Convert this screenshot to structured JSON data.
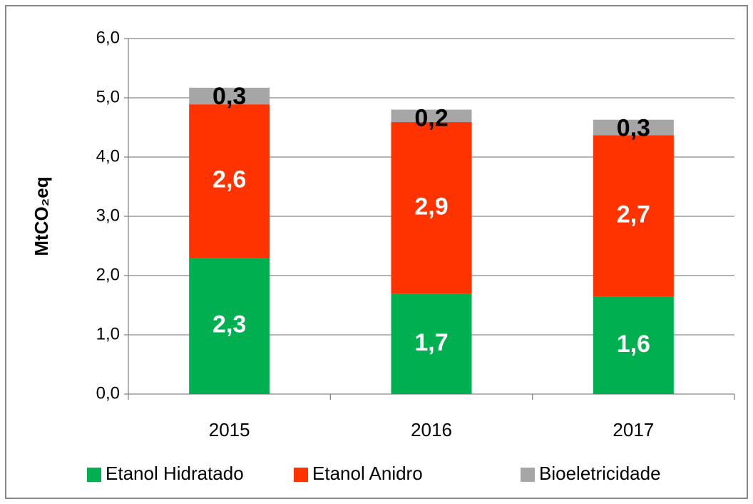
{
  "chart_data": {
    "type": "stacked_bar",
    "y_label": "MtCO₂eq",
    "categories": [
      "2015",
      "2016",
      "2017"
    ],
    "series": [
      {
        "name": "Etanol Hidratado",
        "color": "#00b050",
        "label_color": "#ffffff",
        "values": [
          2.3,
          1.69,
          1.64
        ],
        "value_labels": [
          "2,3",
          "1,7",
          "1,6"
        ]
      },
      {
        "name": "Etanol Anidro",
        "color": "#ff3300",
        "label_color": "#ffffff",
        "values": [
          2.59,
          2.9,
          2.73
        ],
        "value_labels": [
          "2,6",
          "2,9",
          "2,7"
        ]
      },
      {
        "name": "Bioeletricidade",
        "color": "#a6a6a6",
        "label_color": "#000000",
        "values": [
          0.28,
          0.21,
          0.26
        ],
        "value_labels": [
          "0,3",
          "0,2",
          "0,3"
        ]
      }
    ],
    "ylim": [
      0,
      6
    ],
    "yticks": [
      {
        "value": 0,
        "label": "0,0"
      },
      {
        "value": 1,
        "label": "1,0"
      },
      {
        "value": 2,
        "label": "2,0"
      },
      {
        "value": 3,
        "label": "3,0"
      },
      {
        "value": 4,
        "label": "4,0"
      },
      {
        "value": 5,
        "label": "5,0"
      },
      {
        "value": 6,
        "label": "6,0"
      }
    ],
    "grid": true,
    "legend": "bottom"
  }
}
